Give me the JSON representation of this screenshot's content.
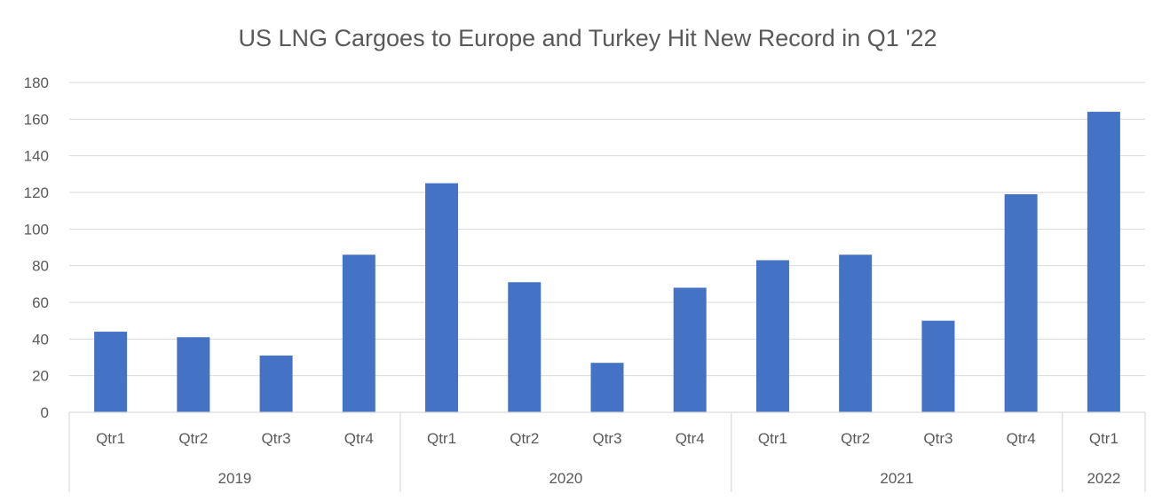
{
  "chart_data": {
    "type": "bar",
    "title": "US LNG Cargoes to Europe and Turkey Hit New Record in Q1 '22",
    "xlabel": "",
    "ylabel": "",
    "ylim": [
      0,
      180
    ],
    "yticks": [
      0,
      20,
      40,
      60,
      80,
      100,
      120,
      140,
      160,
      180
    ],
    "grid": true,
    "legend": "none",
    "bar_color": "#4472c4",
    "groups": [
      {
        "label": "2019",
        "count": 4
      },
      {
        "label": "2020",
        "count": 4
      },
      {
        "label": "2021",
        "count": 4
      },
      {
        "label": "2022",
        "count": 1
      }
    ],
    "categories": [
      "Qtr1",
      "Qtr2",
      "Qtr3",
      "Qtr4",
      "Qtr1",
      "Qtr2",
      "Qtr3",
      "Qtr4",
      "Qtr1",
      "Qtr2",
      "Qtr3",
      "Qtr4",
      "Qtr1"
    ],
    "values": [
      44,
      41,
      31,
      86,
      125,
      71,
      27,
      68,
      83,
      86,
      50,
      119,
      164
    ]
  }
}
